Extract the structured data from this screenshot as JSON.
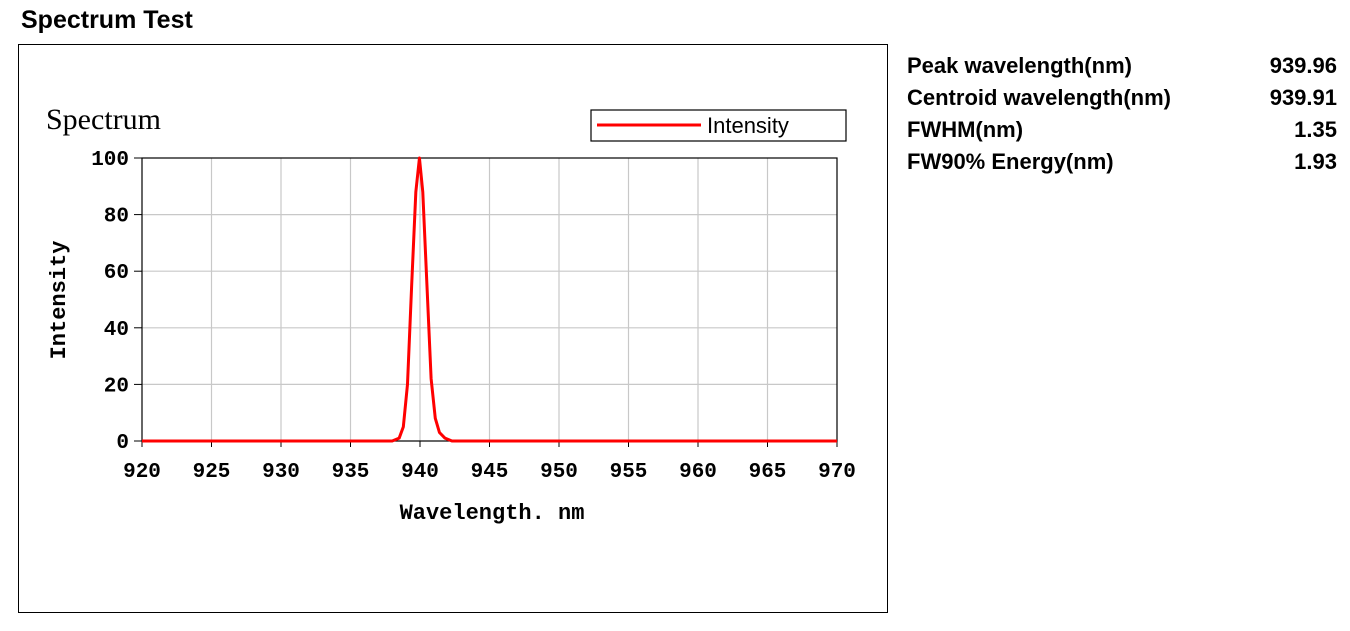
{
  "page": {
    "title": "Spectrum Test"
  },
  "stats": [
    {
      "label": "Peak wavelength(nm)",
      "value": "939.96"
    },
    {
      "label": "Centroid wavelength(nm)",
      "value": "939.91"
    },
    {
      "label": "FWHM(nm)",
      "value": "1.35"
    },
    {
      "label": "FW90% Energy(nm)",
      "value": "1.93"
    }
  ],
  "chart_data": {
    "type": "line",
    "title": "Spectrum",
    "xlabel": "Wavelength. nm",
    "ylabel": "Intensity",
    "xlim": [
      920,
      970
    ],
    "ylim": [
      0,
      100
    ],
    "xticks": [
      920,
      925,
      930,
      935,
      940,
      945,
      950,
      955,
      960,
      965,
      970
    ],
    "yticks": [
      0,
      20,
      40,
      60,
      80,
      100
    ],
    "grid": true,
    "legend_position": "top-right",
    "series": [
      {
        "name": "Intensity",
        "color": "#ff0000",
        "x": [
          920,
          938.0,
          938.5,
          938.8,
          939.1,
          939.4,
          939.7,
          939.96,
          940.2,
          940.5,
          940.8,
          941.1,
          941.4,
          941.8,
          942.3,
          970
        ],
        "y": [
          0,
          0,
          1,
          5,
          20,
          55,
          88,
          100,
          88,
          55,
          22,
          8,
          3,
          1,
          0,
          0
        ]
      }
    ]
  }
}
